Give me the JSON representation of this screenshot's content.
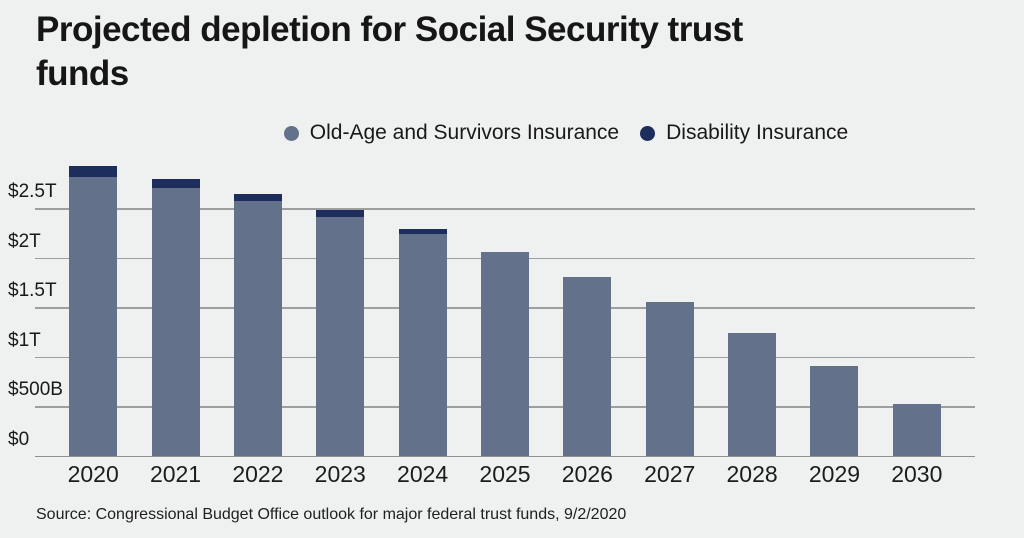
{
  "title": {
    "line1": "Projected depletion for Social Security trust",
    "line2": "funds"
  },
  "legend": [
    {
      "label": "Old-Age and Survivors Insurance",
      "color": "#64718a"
    },
    {
      "label": "Disability Insurance",
      "color": "#1d2e5d"
    }
  ],
  "source": "Source: Congressional Budget Office outlook for major federal trust funds, 9/2/2020",
  "colors": {
    "background": "#eff0f0",
    "gridline": "#9c9ea0",
    "oasi_bar": "#64718a",
    "di_bar": "#1d2e5d",
    "text": "#191919"
  },
  "chart_data": {
    "type": "bar",
    "stacked": true,
    "title": "Projected depletion for Social Security trust funds",
    "xlabel": "",
    "ylabel": "",
    "unit": "trillions of dollars",
    "categories": [
      "2020",
      "2021",
      "2022",
      "2023",
      "2024",
      "2025",
      "2026",
      "2027",
      "2028",
      "2029",
      "2030"
    ],
    "series": [
      {
        "name": "Old-Age and Survivors Insurance",
        "color": "#64718a",
        "values": [
          2.82,
          2.71,
          2.58,
          2.42,
          2.25,
          2.07,
          1.81,
          1.56,
          1.25,
          0.91,
          0.53
        ]
      },
      {
        "name": "Disability Insurance",
        "color": "#1d2e5d",
        "values": [
          0.11,
          0.09,
          0.07,
          0.07,
          0.05,
          0,
          0,
          0,
          0,
          0,
          0
        ]
      }
    ],
    "y_ticks": [
      {
        "label": "$2.5T",
        "value": 2.5
      },
      {
        "label": "$2T",
        "value": 2.0
      },
      {
        "label": "$1.5T",
        "value": 1.5
      },
      {
        "label": "$1T",
        "value": 1.0
      },
      {
        "label": "$500B",
        "value": 0.5
      },
      {
        "label": "$0",
        "value": 0
      }
    ],
    "ylim": [
      0,
      3.0
    ],
    "grid": true,
    "legend_position": "top"
  }
}
